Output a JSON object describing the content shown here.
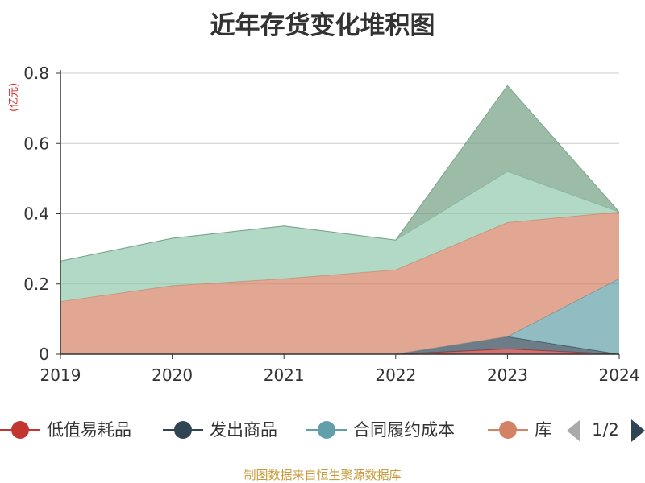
{
  "title": "近年存货变化堆积图",
  "unit_label": "(亿元)",
  "source_note": "制图数据来自恒生聚源数据库",
  "legend": {
    "items": [
      {
        "label": "低值易耗品",
        "color": "#c23531"
      },
      {
        "label": "发出商品",
        "color": "#2f4554"
      },
      {
        "label": "合同履约成本",
        "color": "#61a0a8"
      },
      {
        "label": "库",
        "color": "#d48265"
      }
    ],
    "page": "1/2",
    "prev_color": "#aaaaaa",
    "next_color": "#2f4554"
  },
  "chart_data": {
    "type": "area",
    "stacked": true,
    "categories": [
      "2019",
      "2020",
      "2021",
      "2022",
      "2023",
      "2024"
    ],
    "ylim": [
      0,
      0.8
    ],
    "yticks": [
      "0",
      "0.2",
      "0.4",
      "0.6",
      "0.8"
    ],
    "grid": true,
    "series": [
      {
        "name": "低值易耗品",
        "color": "#c23531",
        "values": [
          0,
          0,
          0,
          0,
          0.015,
          0
        ]
      },
      {
        "name": "发出商品",
        "color": "#2f4554",
        "values": [
          0,
          0,
          0,
          0,
          0.035,
          0
        ]
      },
      {
        "name": "合同履约成本",
        "color": "#61a0a8",
        "values": [
          0,
          0,
          0,
          0,
          0,
          0.215
        ]
      },
      {
        "name": "库存商品",
        "color": "#d48265",
        "values": [
          0.15,
          0.195,
          0.215,
          0.24,
          0.325,
          0.19
        ]
      },
      {
        "color": "#91c7ae",
        "values": [
          0.115,
          0.135,
          0.15,
          0.085,
          0.145,
          0
        ]
      },
      {
        "color": "#749f83",
        "values": [
          0,
          0,
          0,
          0,
          0.245,
          0
        ]
      }
    ]
  }
}
